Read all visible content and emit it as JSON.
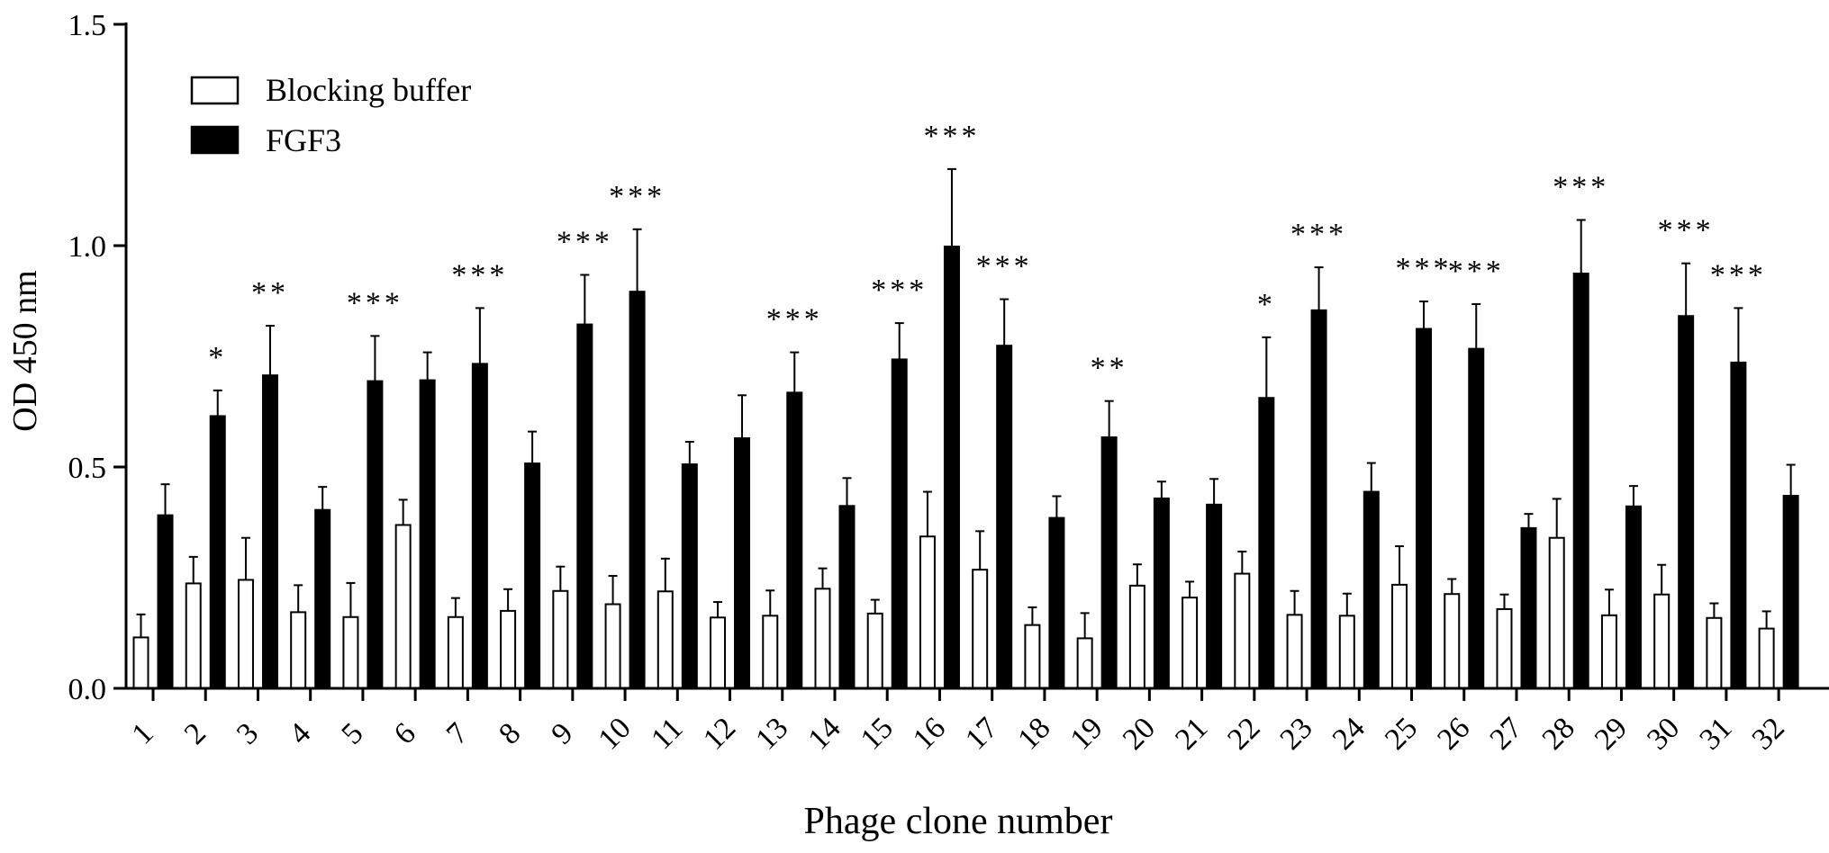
{
  "chart_data": {
    "type": "bar",
    "xlabel": "Phage clone number",
    "ylabel": "OD 450 nm",
    "ylim": [
      0,
      1.5
    ],
    "yticks": [
      0.0,
      0.5,
      1.0,
      1.5
    ],
    "ytick_labels": [
      "0.0",
      "0.5",
      "1.0",
      "1.5"
    ],
    "categories": [
      "1",
      "2",
      "3",
      "4",
      "5",
      "6",
      "7",
      "8",
      "9",
      "10",
      "11",
      "12",
      "13",
      "14",
      "15",
      "16",
      "17",
      "18",
      "19",
      "20",
      "21",
      "22",
      "23",
      "24",
      "25",
      "26",
      "27",
      "28",
      "29",
      "30",
      "31",
      "32"
    ],
    "legend_position": "top-left",
    "series": [
      {
        "name": "Blocking buffer",
        "color": "#ffffff",
        "values": [
          0.115,
          0.237,
          0.245,
          0.172,
          0.161,
          0.369,
          0.161,
          0.175,
          0.22,
          0.19,
          0.219,
          0.16,
          0.164,
          0.225,
          0.169,
          0.343,
          0.268,
          0.143,
          0.113,
          0.232,
          0.205,
          0.259,
          0.166,
          0.164,
          0.234,
          0.213,
          0.179,
          0.34,
          0.165,
          0.212,
          0.159,
          0.135
        ],
        "errors": [
          0.052,
          0.06,
          0.095,
          0.061,
          0.077,
          0.057,
          0.043,
          0.049,
          0.055,
          0.064,
          0.074,
          0.035,
          0.057,
          0.046,
          0.031,
          0.101,
          0.087,
          0.04,
          0.057,
          0.048,
          0.036,
          0.05,
          0.054,
          0.05,
          0.087,
          0.034,
          0.033,
          0.088,
          0.058,
          0.067,
          0.033,
          0.039
        ]
      },
      {
        "name": "FGF3",
        "color": "#000000",
        "values": [
          0.391,
          0.615,
          0.707,
          0.403,
          0.694,
          0.696,
          0.733,
          0.508,
          0.822,
          0.896,
          0.506,
          0.565,
          0.668,
          0.412,
          0.743,
          0.998,
          0.774,
          0.385,
          0.567,
          0.429,
          0.415,
          0.656,
          0.854,
          0.444,
          0.812,
          0.767,
          0.362,
          0.937,
          0.411,
          0.841,
          0.736,
          0.435
        ],
        "errors": [
          0.07,
          0.058,
          0.112,
          0.052,
          0.102,
          0.063,
          0.126,
          0.072,
          0.112,
          0.141,
          0.051,
          0.097,
          0.091,
          0.063,
          0.082,
          0.175,
          0.105,
          0.049,
          0.082,
          0.038,
          0.058,
          0.137,
          0.097,
          0.065,
          0.062,
          0.101,
          0.032,
          0.121,
          0.046,
          0.119,
          0.123,
          0.07
        ]
      }
    ],
    "annotations": [
      {
        "category": "2",
        "text": "*"
      },
      {
        "category": "3",
        "text": "**"
      },
      {
        "category": "5",
        "text": "***"
      },
      {
        "category": "7",
        "text": "***"
      },
      {
        "category": "9",
        "text": "***"
      },
      {
        "category": "10",
        "text": "***"
      },
      {
        "category": "13",
        "text": "***"
      },
      {
        "category": "15",
        "text": "***"
      },
      {
        "category": "16",
        "text": "***"
      },
      {
        "category": "17",
        "text": "***"
      },
      {
        "category": "19",
        "text": "**"
      },
      {
        "category": "22",
        "text": "*"
      },
      {
        "category": "23",
        "text": "***"
      },
      {
        "category": "25",
        "text": "***"
      },
      {
        "category": "26",
        "text": "***"
      },
      {
        "category": "28",
        "text": "***"
      },
      {
        "category": "30",
        "text": "***"
      },
      {
        "category": "31",
        "text": "***"
      }
    ]
  }
}
